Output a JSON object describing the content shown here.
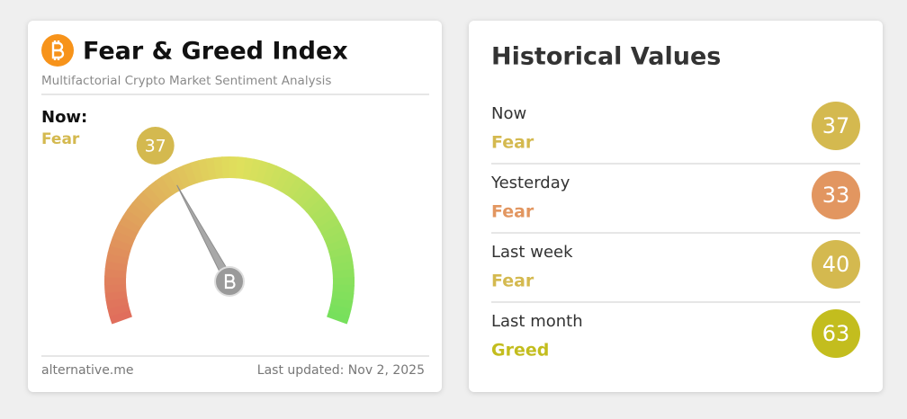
{
  "header": {
    "title": "Fear & Greed Index",
    "subtitle": "Multifactorial Crypto Market Sentiment Analysis"
  },
  "now": {
    "label": "Now:",
    "classification": "Fear",
    "color": "#d4b94f"
  },
  "gauge": {
    "value": 37,
    "range": [
      0,
      100
    ]
  },
  "footer": {
    "source": "alternative.me",
    "updated": "Last updated: Nov 2, 2025"
  },
  "history": {
    "title": "Historical Values",
    "rows": [
      {
        "label": "Now",
        "classification": "Fear",
        "value": 37,
        "color": "#d4b94f"
      },
      {
        "label": "Yesterday",
        "classification": "Fear",
        "value": 33,
        "color": "#e29660"
      },
      {
        "label": "Last week",
        "classification": "Fear",
        "value": 40,
        "color": "#d4b94f"
      },
      {
        "label": "Last month",
        "classification": "Greed",
        "value": 63,
        "color": "#c3bd1e"
      }
    ]
  }
}
